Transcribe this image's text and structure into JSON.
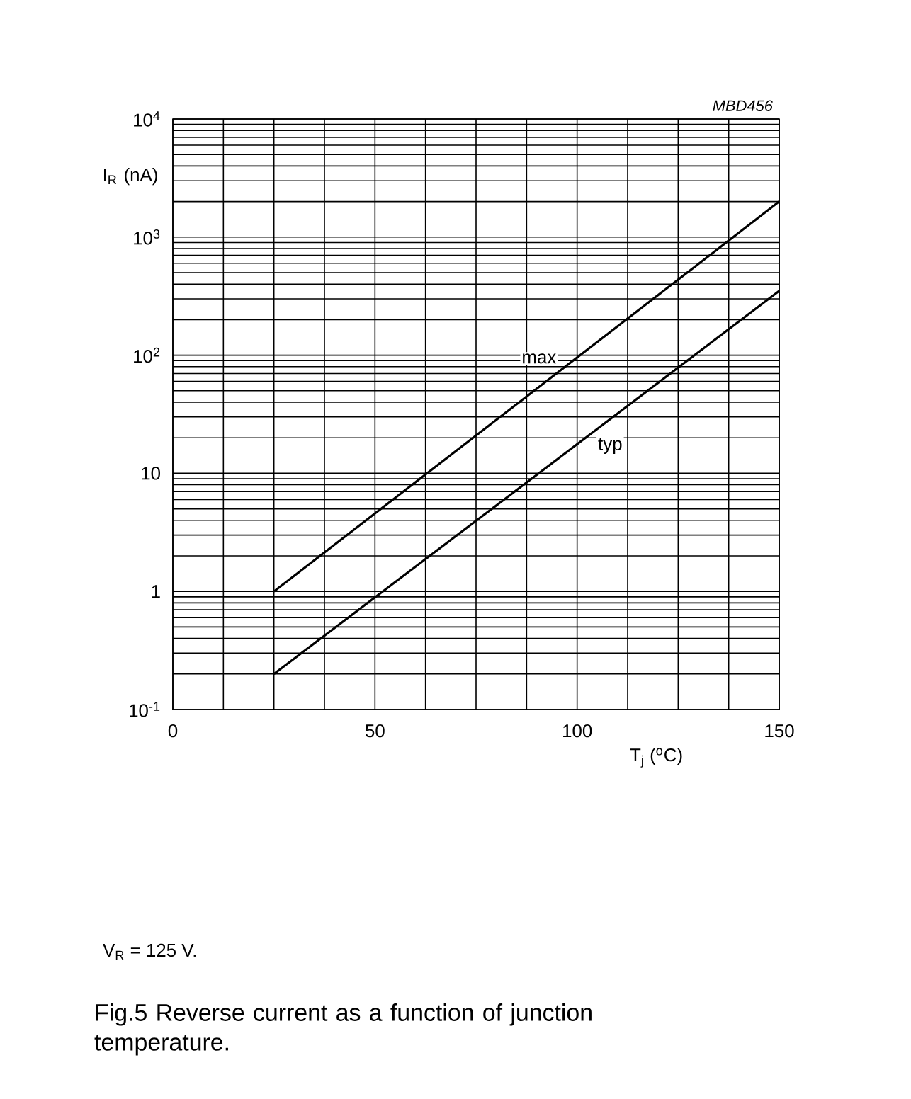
{
  "chart_data": {
    "type": "line",
    "title": "Fig.5   Reverse current as a function of junction temperature.",
    "xlabel": "T$_{j}$ ($^{o}$C)",
    "ylabel": "I$_{R}$ (nA)",
    "annotations": [
      "MBD456",
      "V$_{R}$ = 125 V."
    ],
    "log": "y",
    "grid": true,
    "xlim": [
      0,
      150
    ],
    "ylim": [
      0.1,
      10000
    ],
    "xticks": [
      0,
      {
        "value": 12.5,
        "label": null
      },
      {
        "value": 25,
        "label": null
      },
      {
        "value": 37.5,
        "label": null
      },
      50,
      {
        "value": 62.5,
        "label": null
      },
      {
        "value": 75,
        "label": null
      },
      {
        "value": 87.5,
        "label": null
      },
      100,
      {
        "value": 112.5,
        "label": null
      },
      {
        "value": 125,
        "label": null
      },
      {
        "value": 137.5,
        "label": null
      },
      150
    ],
    "yticks": [
      {
        "value": 0.1,
        "label": "10$^{-1}$"
      },
      1,
      10,
      {
        "value": 100,
        "label": "10$^{2}$"
      },
      {
        "value": 1000,
        "label": "10$^{3}$"
      },
      {
        "value": 10000,
        "label": "10$^{4}$"
      }
    ],
    "x": [
      25,
      150
    ],
    "series": [
      {
        "name": "max",
        "color": "#000000",
        "values": [
          1,
          2000
        ]
      },
      {
        "name": "typ",
        "color": "#000000",
        "values": [
          0.2,
          350
        ]
      }
    ]
  }
}
